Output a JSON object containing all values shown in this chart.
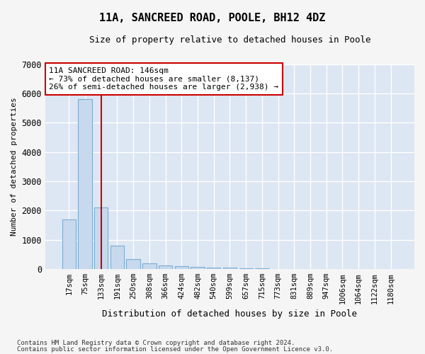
{
  "title": "11A, SANCREED ROAD, POOLE, BH12 4DZ",
  "subtitle": "Size of property relative to detached houses in Poole",
  "xlabel": "Distribution of detached houses by size in Poole",
  "ylabel": "Number of detached properties",
  "footnote1": "Contains HM Land Registry data © Crown copyright and database right 2024.",
  "footnote2": "Contains public sector information licensed under the Open Government Licence v3.0.",
  "annotation_line1": "11A SANCREED ROAD: 146sqm",
  "annotation_line2": "← 73% of detached houses are smaller (8,137)",
  "annotation_line3": "26% of semi-detached houses are larger (2,938) →",
  "bar_color": "#c8d9ee",
  "bar_edge_color": "#7aadd4",
  "vline_color": "#cc0000",
  "vline_x_index": 2,
  "categories": [
    "17sqm",
    "75sqm",
    "133sqm",
    "191sqm",
    "250sqm",
    "308sqm",
    "366sqm",
    "424sqm",
    "482sqm",
    "540sqm",
    "599sqm",
    "657sqm",
    "715sqm",
    "773sqm",
    "831sqm",
    "889sqm",
    "947sqm",
    "1006sqm",
    "1064sqm",
    "1122sqm",
    "1180sqm"
  ],
  "values": [
    1700,
    5800,
    2100,
    800,
    350,
    200,
    130,
    100,
    80,
    50,
    45,
    30,
    25,
    0,
    0,
    0,
    0,
    0,
    0,
    0,
    0
  ],
  "ylim": [
    0,
    7000
  ],
  "yticks": [
    0,
    1000,
    2000,
    3000,
    4000,
    5000,
    6000,
    7000
  ],
  "fig_bg_color": "#f5f5f5",
  "plot_bg_color": "#dde6f3",
  "grid_color": "#ffffff"
}
